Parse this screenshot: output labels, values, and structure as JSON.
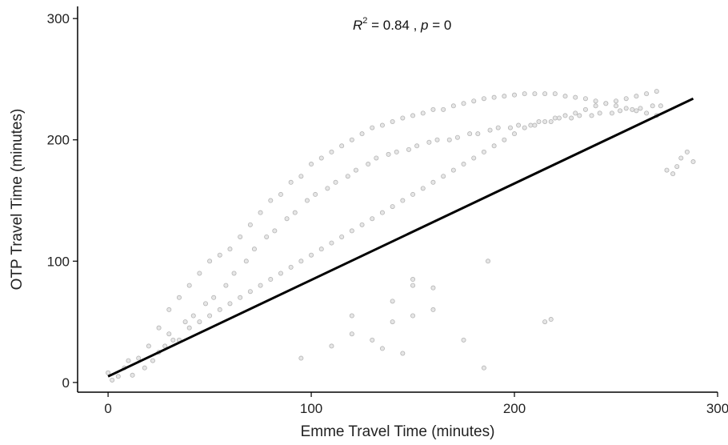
{
  "chart_data": {
    "type": "scatter",
    "xlabel": "Emme Travel Time (minutes)",
    "ylabel": "OTP Travel Time (minutes)",
    "xlim": [
      -15,
      300
    ],
    "ylim": [
      -8,
      310
    ],
    "xticks": [
      0,
      100,
      200,
      300
    ],
    "yticks": [
      0,
      100,
      200,
      300
    ],
    "annotation": {
      "r_symbol": "R",
      "r_power": "2",
      "r_value": " = 0.84 , ",
      "p_symbol": "p",
      "p_value": " = 0"
    },
    "grid": false,
    "point_fill": "#e6e6e6",
    "point_stroke": "#b4b4b4",
    "line_color": "#000000",
    "series": [
      {
        "type": "regression_line",
        "x": [
          0,
          288
        ],
        "y": [
          5,
          234
        ]
      },
      {
        "type": "points",
        "x": [
          0,
          2,
          5,
          8,
          10,
          12,
          15,
          18,
          20,
          22,
          25,
          25,
          28,
          30,
          30,
          32,
          35,
          35,
          38,
          40,
          40,
          42,
          45,
          45,
          48,
          50,
          50,
          52,
          55,
          55,
          58,
          60,
          60,
          62,
          65,
          65,
          68,
          70,
          70,
          72,
          75,
          75,
          78,
          80,
          80,
          82,
          85,
          85,
          88,
          90,
          90,
          92,
          95,
          95,
          98,
          100,
          100,
          102,
          105,
          105,
          108,
          110,
          110,
          112,
          115,
          115,
          118,
          120,
          120,
          122,
          125,
          125,
          128,
          130,
          130,
          132,
          135,
          135,
          138,
          140,
          140,
          142,
          145,
          145,
          148,
          150,
          150,
          152,
          155,
          155,
          158,
          160,
          160,
          162,
          165,
          165,
          168,
          170,
          170,
          172,
          175,
          175,
          178,
          180,
          180,
          182,
          185,
          185,
          188,
          190,
          190,
          192,
          195,
          195,
          198,
          200,
          200,
          202,
          205,
          205,
          208,
          210,
          210,
          212,
          215,
          215,
          218,
          220,
          220,
          222,
          225,
          225,
          228,
          230,
          230,
          232,
          235,
          235,
          238,
          240,
          240,
          242,
          245,
          245,
          248,
          250,
          250,
          252,
          255,
          255,
          258,
          260,
          260,
          262,
          265,
          265,
          268,
          270,
          270,
          272,
          275,
          278,
          280,
          282,
          285,
          288,
          95,
          110,
          120,
          130,
          140,
          150,
          160,
          150,
          175,
          185,
          135,
          145,
          160,
          120,
          140,
          150,
          215,
          218,
          187
        ],
        "y": [
          8,
          2,
          5,
          12,
          18,
          6,
          20,
          12,
          30,
          18,
          25,
          45,
          30,
          40,
          60,
          35,
          35,
          70,
          50,
          45,
          80,
          55,
          50,
          90,
          65,
          55,
          100,
          70,
          60,
          105,
          80,
          65,
          110,
          90,
          70,
          120,
          100,
          75,
          130,
          110,
          80,
          140,
          120,
          85,
          150,
          125,
          90,
          155,
          135,
          95,
          165,
          140,
          100,
          170,
          150,
          105,
          180,
          155,
          110,
          185,
          160,
          115,
          190,
          165,
          120,
          195,
          170,
          125,
          200,
          175,
          130,
          205,
          180,
          135,
          210,
          185,
          140,
          212,
          188,
          145,
          215,
          190,
          150,
          218,
          192,
          155,
          220,
          195,
          160,
          222,
          198,
          165,
          225,
          200,
          170,
          225,
          200,
          175,
          228,
          202,
          180,
          230,
          205,
          185,
          232,
          205,
          190,
          234,
          208,
          195,
          235,
          210,
          200,
          236,
          210,
          205,
          237,
          212,
          210,
          238,
          212,
          212,
          238,
          215,
          215,
          238,
          215,
          218,
          238,
          218,
          220,
          236,
          218,
          222,
          235,
          220,
          225,
          234,
          220,
          228,
          232,
          222,
          230,
          230,
          222,
          232,
          228,
          224,
          234,
          226,
          225,
          236,
          224,
          226,
          238,
          222,
          228,
          240,
          220,
          228,
          175,
          172,
          178,
          185,
          190,
          182,
          20,
          30,
          40,
          35,
          50,
          55,
          60,
          80,
          35,
          12,
          28,
          24,
          78,
          55,
          67,
          85,
          50,
          52,
          100
        ]
      }
    ]
  }
}
